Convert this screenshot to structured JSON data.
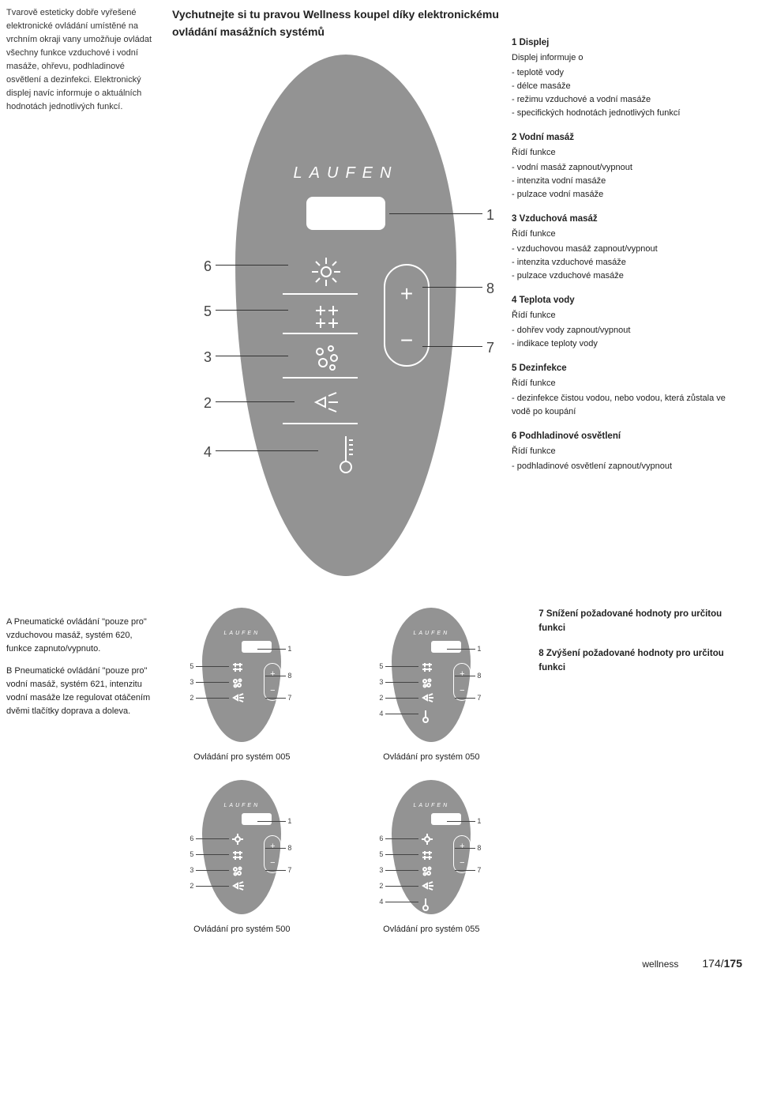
{
  "intro": "Tvarově esteticky dobře vyřešené elektronické ovládání umístěné na vrchním okraji vany umožňuje ovládat všechny funkce vzduchové i vodní masáže, ohřevu, podhladinové osvětlení a dezinfekci. Elektronický displej navíc informuje o aktuálních hodnotách jednotlivých funkcí.",
  "headline": "Vychutnejte si tu pravou Wellness koupel díky elektronickému ovládání masážních systémů",
  "brand": "LAUFEN",
  "colors": {
    "remote_bg": "#939393",
    "remote_fg": "#ffffff"
  },
  "features": [
    {
      "n": "1",
      "title": "Displej",
      "sub": "Displej informuje o",
      "items": [
        "teplotě vody",
        "délce masáže",
        "režimu vzduchové a vodní masáže",
        "specifických hodnotách jednotlivých funkcí"
      ]
    },
    {
      "n": "2",
      "title": "Vodní masáž",
      "sub": "Řídí funkce",
      "items": [
        "vodní masáž zapnout/vypnout",
        "intenzita vodní masáže",
        "pulzace vodní masáže"
      ]
    },
    {
      "n": "3",
      "title": "Vzduchová masáž",
      "sub": "Řídí funkce",
      "items": [
        "vzduchovou masáž zapnout/vypnout",
        "intenzita vzduchové masáže",
        "pulzace vzduchové masáže"
      ]
    },
    {
      "n": "4",
      "title": "Teplota vody",
      "sub": "Řídí funkce",
      "items": [
        "dohřev vody zapnout/vypnout",
        "indikace teploty vody"
      ]
    },
    {
      "n": "5",
      "title": "Dezinfekce",
      "sub": "Řídí funkce",
      "items": [
        "dezinfekce čistou vodou, nebo vodou, která zůstala ve vodě po koupání"
      ]
    },
    {
      "n": "6",
      "title": "Podhladinové osvětlení",
      "sub": "Řídí funkce",
      "items": [
        "podhladinové osvětlení zapnout/vypnout"
      ]
    },
    {
      "n": "7",
      "title": "Snížení požadované hodnoty pro určitou funkci",
      "sub": "",
      "items": []
    },
    {
      "n": "8",
      "title": "Zvýšení požadované hodnoty pro určitou funkci",
      "sub": "",
      "items": []
    }
  ],
  "bottom_left": {
    "A": "A Pneumatické ovládání \"pouze pro\" vzduchovou masáž, systém 620, funkce zapnuto/vypnuto.",
    "B": "B Pneumatické ovládání \"pouze pro\" vodní masáž, systém 621, intenzitu vodní masáže lze regulovat otáčením dvěmi tlačítky doprava a doleva."
  },
  "mini_captions": [
    "Ovládání pro systém 005",
    "Ovládání pro systém 050",
    "Ovládání pro systém 500",
    "Ovládání pro systém 055"
  ],
  "big_labels": {
    "left": [
      "6",
      "5",
      "3",
      "2",
      "4"
    ],
    "right": [
      "1",
      "8",
      "7"
    ]
  },
  "mini_variants": {
    "v005": {
      "left": [
        "5",
        "3",
        "2"
      ],
      "right": [
        "1",
        "8",
        "7"
      ]
    },
    "v050": {
      "left": [
        "5",
        "3",
        "2",
        "4"
      ],
      "right": [
        "1",
        "8",
        "7"
      ]
    },
    "v500": {
      "left": [
        "6",
        "5",
        "3",
        "2"
      ],
      "right": [
        "1",
        "8",
        "7"
      ]
    },
    "v055": {
      "left": [
        "6",
        "5",
        "3",
        "2",
        "4"
      ],
      "right": [
        "1",
        "8",
        "7"
      ]
    }
  },
  "footer": {
    "section": "wellness",
    "page_cur": "174",
    "page_total": "175"
  }
}
